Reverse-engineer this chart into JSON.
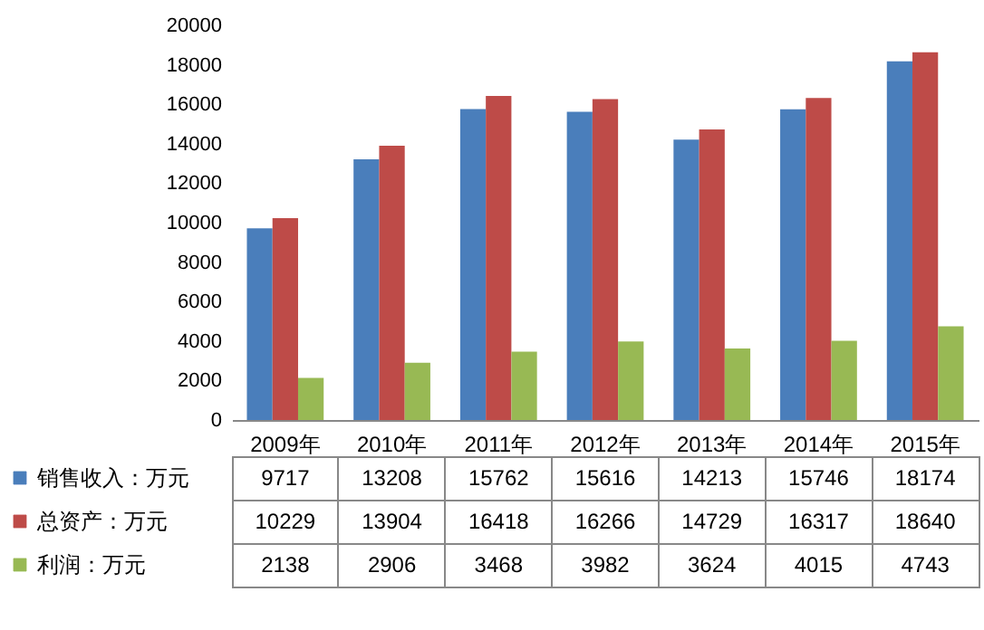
{
  "chart_data": {
    "type": "bar",
    "categories": [
      "2009年",
      "2010年",
      "2011年",
      "2012年",
      "2013年",
      "2014年",
      "2015年"
    ],
    "series": [
      {
        "name": "销售收入：万元",
        "color": "#4a7ebb",
        "values": [
          9717,
          13208,
          15762,
          15616,
          14213,
          15746,
          18174
        ]
      },
      {
        "name": "总资产：万元",
        "color": "#be4b48",
        "values": [
          10229,
          13904,
          16418,
          16266,
          14729,
          16317,
          18640
        ]
      },
      {
        "name": "利润：万元",
        "color": "#98b954",
        "values": [
          2138,
          2906,
          3468,
          3982,
          3624,
          4015,
          4743
        ]
      }
    ],
    "ylim": [
      0,
      20000
    ],
    "yticks": [
      0,
      2000,
      4000,
      6000,
      8000,
      10000,
      12000,
      14000,
      16000,
      18000,
      20000
    ],
    "grid": false,
    "legend": "bottom left",
    "data_labels": true
  }
}
